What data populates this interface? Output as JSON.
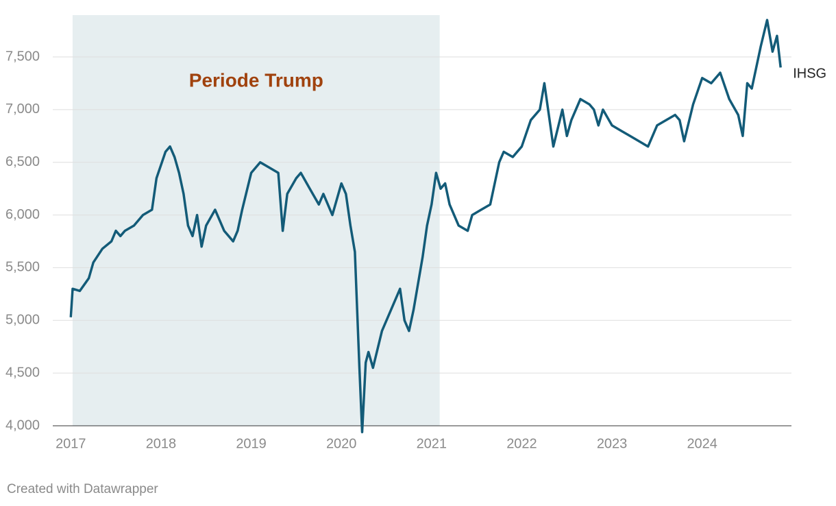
{
  "chart_data": {
    "type": "line",
    "x": [
      2017.0,
      2017.02,
      2017.1,
      2017.2,
      2017.25,
      2017.35,
      2017.45,
      2017.5,
      2017.55,
      2017.6,
      2017.7,
      2017.8,
      2017.9,
      2017.95,
      2018.05,
      2018.1,
      2018.15,
      2018.2,
      2018.25,
      2018.3,
      2018.35,
      2018.4,
      2018.45,
      2018.5,
      2018.6,
      2018.7,
      2018.75,
      2018.8,
      2018.85,
      2018.9,
      2019.0,
      2019.1,
      2019.2,
      2019.3,
      2019.35,
      2019.4,
      2019.5,
      2019.55,
      2019.65,
      2019.75,
      2019.8,
      2019.9,
      2020.0,
      2020.05,
      2020.1,
      2020.15,
      2020.2,
      2020.23,
      2020.27,
      2020.3,
      2020.35,
      2020.45,
      2020.55,
      2020.65,
      2020.7,
      2020.75,
      2020.8,
      2020.9,
      2020.95,
      2021.0,
      2021.05,
      2021.1,
      2021.15,
      2021.2,
      2021.3,
      2021.4,
      2021.45,
      2021.55,
      2021.65,
      2021.75,
      2021.8,
      2021.9,
      2022.0,
      2022.1,
      2022.2,
      2022.25,
      2022.35,
      2022.45,
      2022.5,
      2022.55,
      2022.65,
      2022.75,
      2022.8,
      2022.85,
      2022.9,
      2023.0,
      2023.1,
      2023.2,
      2023.3,
      2023.4,
      2023.5,
      2023.6,
      2023.7,
      2023.75,
      2023.8,
      2023.9,
      2024.0,
      2024.1,
      2024.2,
      2024.3,
      2024.4,
      2024.45,
      2024.5,
      2024.55,
      2024.65,
      2024.72,
      2024.78,
      2024.83,
      2024.87
    ],
    "series": [
      {
        "name": "IHSG",
        "color": "#135b78",
        "values": [
          5030,
          5300,
          5280,
          5400,
          5550,
          5680,
          5750,
          5850,
          5800,
          5850,
          5900,
          6000,
          6050,
          6350,
          6600,
          6650,
          6550,
          6400,
          6200,
          5900,
          5800,
          6000,
          5700,
          5900,
          6050,
          5850,
          5800,
          5750,
          5850,
          6050,
          6400,
          6500,
          6450,
          6400,
          5850,
          6200,
          6350,
          6400,
          6250,
          6100,
          6200,
          6000,
          6300,
          6200,
          5900,
          5650,
          4550,
          3940,
          4600,
          4700,
          4550,
          4900,
          5100,
          5300,
          5000,
          4900,
          5100,
          5600,
          5900,
          6100,
          6400,
          6250,
          6300,
          6100,
          5900,
          5850,
          6000,
          6050,
          6100,
          6500,
          6600,
          6550,
          6650,
          6900,
          7000,
          7250,
          6650,
          7000,
          6750,
          6900,
          7100,
          7050,
          7000,
          6850,
          7000,
          6850,
          6800,
          6750,
          6700,
          6650,
          6850,
          6900,
          6950,
          6900,
          6700,
          7050,
          7300,
          7250,
          7350,
          7100,
          6950,
          6750,
          7250,
          7200,
          7600,
          7850,
          7550,
          7700,
          7400
        ]
      }
    ],
    "xlim": [
      2016.8,
      2024.99
    ],
    "xticks": [
      2017,
      2018,
      2019,
      2020,
      2021,
      2022,
      2023,
      2024
    ],
    "ylim": [
      4000,
      7910
    ],
    "yticks": [
      {
        "value": 4000,
        "label": "4,000"
      },
      {
        "value": 4500,
        "label": "4,500"
      },
      {
        "value": 5000,
        "label": "5,000"
      },
      {
        "value": 5500,
        "label": "5,500"
      },
      {
        "value": 6000,
        "label": "6,000"
      },
      {
        "value": 6500,
        "label": "6,500"
      },
      {
        "value": 7000,
        "label": "7,000"
      },
      {
        "value": 7500,
        "label": "7,500"
      }
    ],
    "grid": true,
    "shade": {
      "x": [
        2017.02,
        2021.09
      ],
      "label": "Periode Trump",
      "color": "#e6eef0",
      "label_color": "#a0420e"
    },
    "footer": "Created with Datawrapper"
  }
}
